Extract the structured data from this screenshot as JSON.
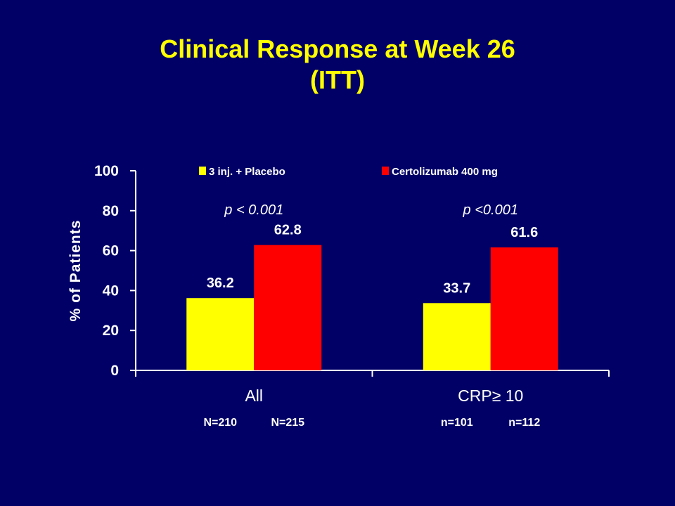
{
  "slide": {
    "title_line1": "Clinical Response at Week 26",
    "title_line2": "(ITT)"
  },
  "chart_data": {
    "type": "bar",
    "ylabel": "% of Patients",
    "ylim": [
      0,
      100
    ],
    "yticks": [
      0,
      20,
      40,
      60,
      80,
      100
    ],
    "categories": [
      "All",
      "CRP≥ 10"
    ],
    "series": [
      {
        "name": "3 inj. + Placebo",
        "values": [
          36.2,
          33.7
        ],
        "color": "#FFFF00"
      },
      {
        "name": "Certolizumab 400 mg",
        "values": [
          62.8,
          61.6
        ],
        "color": "#FF0000"
      }
    ],
    "data_labels": [
      [
        "36.2",
        "33.7"
      ],
      [
        "62.8",
        "61.6"
      ]
    ],
    "p_values": [
      "p < 0.001",
      "p <0.001"
    ],
    "sample_sizes": [
      [
        "N=210",
        "N=215"
      ],
      [
        "n=101",
        "n=112"
      ]
    ],
    "legend_position": "top",
    "grid": false,
    "background": "#000066",
    "text_color": "#FFFFFF",
    "title_color": "#FFFF00"
  }
}
